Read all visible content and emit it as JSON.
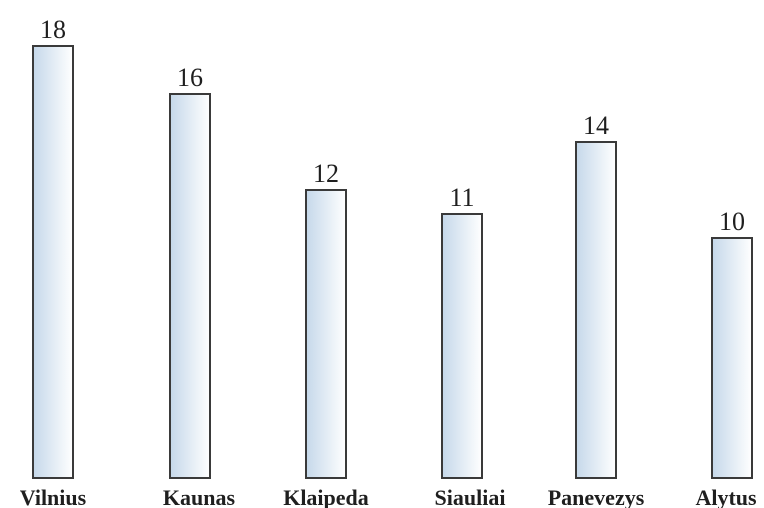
{
  "chart_data": {
    "type": "bar",
    "categories": [
      "Vilnius",
      "Kaunas",
      "Klaipeda",
      "Siauliai",
      "Panevezys",
      "Alytus"
    ],
    "values": [
      18,
      16,
      12,
      11,
      14,
      10
    ],
    "title": "",
    "xlabel": "",
    "ylabel": "",
    "grid": false,
    "bar_fill_gradient": [
      "#c5d8ea",
      "#ffffff"
    ],
    "bar_stroke": "#3a3a3a"
  }
}
